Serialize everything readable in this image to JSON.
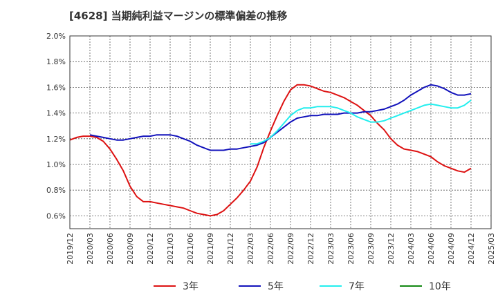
{
  "chart_data": {
    "type": "line",
    "title": "[4628]  当期純利益マージンの標準偏差の推移",
    "xlabel": "",
    "ylabel": "",
    "ylim": [
      0.5,
      2.0
    ],
    "y_ticks": [
      "0.6%",
      "0.8%",
      "1.0%",
      "1.2%",
      "1.4%",
      "1.6%",
      "1.8%",
      "2.0%"
    ],
    "y_tick_values": [
      0.6,
      0.8,
      1.0,
      1.2,
      1.4,
      1.6,
      1.8,
      2.0
    ],
    "x_ticks": [
      "2019/12",
      "2020/03",
      "2020/06",
      "2020/09",
      "2020/12",
      "2021/03",
      "2021/06",
      "2021/09",
      "2021/12",
      "2022/03",
      "2022/06",
      "2022/09",
      "2022/12",
      "2023/03",
      "2023/06",
      "2023/09",
      "2023/12",
      "2024/03",
      "2024/06",
      "2024/09",
      "2024/12",
      "2025/03"
    ],
    "grid": true,
    "legend_position": "bottom",
    "series": [
      {
        "name": "3年",
        "color": "#dd1111",
        "points": [
          [
            "2019/12",
            1.19
          ],
          [
            "2020/01",
            1.21
          ],
          [
            "2020/02",
            1.22
          ],
          [
            "2020/03",
            1.22
          ],
          [
            "2020/04",
            1.21
          ],
          [
            "2020/05",
            1.18
          ],
          [
            "2020/06",
            1.12
          ],
          [
            "2020/07",
            1.04
          ],
          [
            "2020/08",
            0.95
          ],
          [
            "2020/09",
            0.83
          ],
          [
            "2020/10",
            0.75
          ],
          [
            "2020/11",
            0.71
          ],
          [
            "2020/12",
            0.71
          ],
          [
            "2021/01",
            0.7
          ],
          [
            "2021/02",
            0.69
          ],
          [
            "2021/03",
            0.68
          ],
          [
            "2021/04",
            0.67
          ],
          [
            "2021/05",
            0.66
          ],
          [
            "2021/06",
            0.64
          ],
          [
            "2021/07",
            0.62
          ],
          [
            "2021/08",
            0.61
          ],
          [
            "2021/09",
            0.6
          ],
          [
            "2021/10",
            0.61
          ],
          [
            "2021/11",
            0.64
          ],
          [
            "2021/12",
            0.69
          ],
          [
            "2022/01",
            0.74
          ],
          [
            "2022/02",
            0.8
          ],
          [
            "2022/03",
            0.87
          ],
          [
            "2022/04",
            0.98
          ],
          [
            "2022/05",
            1.13
          ],
          [
            "2022/06",
            1.26
          ],
          [
            "2022/07",
            1.38
          ],
          [
            "2022/08",
            1.49
          ],
          [
            "2022/09",
            1.58
          ],
          [
            "2022/10",
            1.62
          ],
          [
            "2022/11",
            1.62
          ],
          [
            "2022/12",
            1.61
          ],
          [
            "2023/01",
            1.59
          ],
          [
            "2023/02",
            1.57
          ],
          [
            "2023/03",
            1.56
          ],
          [
            "2023/04",
            1.54
          ],
          [
            "2023/05",
            1.52
          ],
          [
            "2023/06",
            1.49
          ],
          [
            "2023/07",
            1.46
          ],
          [
            "2023/08",
            1.42
          ],
          [
            "2023/09",
            1.38
          ],
          [
            "2023/10",
            1.32
          ],
          [
            "2023/11",
            1.27
          ],
          [
            "2023/12",
            1.2
          ],
          [
            "2024/01",
            1.15
          ],
          [
            "2024/02",
            1.12
          ],
          [
            "2024/03",
            1.11
          ],
          [
            "2024/04",
            1.1
          ],
          [
            "2024/05",
            1.08
          ],
          [
            "2024/06",
            1.06
          ],
          [
            "2024/07",
            1.02
          ],
          [
            "2024/08",
            0.99
          ],
          [
            "2024/09",
            0.97
          ],
          [
            "2024/10",
            0.95
          ],
          [
            "2024/11",
            0.94
          ],
          [
            "2024/12",
            0.97
          ]
        ]
      },
      {
        "name": "5年",
        "color": "#1111bb",
        "points": [
          [
            "2020/03",
            1.23
          ],
          [
            "2020/04",
            1.22
          ],
          [
            "2020/05",
            1.21
          ],
          [
            "2020/06",
            1.2
          ],
          [
            "2020/07",
            1.19
          ],
          [
            "2020/08",
            1.19
          ],
          [
            "2020/09",
            1.2
          ],
          [
            "2020/10",
            1.21
          ],
          [
            "2020/11",
            1.22
          ],
          [
            "2020/12",
            1.22
          ],
          [
            "2021/01",
            1.23
          ],
          [
            "2021/02",
            1.23
          ],
          [
            "2021/03",
            1.23
          ],
          [
            "2021/04",
            1.22
          ],
          [
            "2021/05",
            1.2
          ],
          [
            "2021/06",
            1.18
          ],
          [
            "2021/07",
            1.15
          ],
          [
            "2021/08",
            1.13
          ],
          [
            "2021/09",
            1.11
          ],
          [
            "2021/10",
            1.11
          ],
          [
            "2021/11",
            1.11
          ],
          [
            "2021/12",
            1.12
          ],
          [
            "2022/01",
            1.12
          ],
          [
            "2022/02",
            1.13
          ],
          [
            "2022/03",
            1.14
          ],
          [
            "2022/04",
            1.15
          ],
          [
            "2022/05",
            1.17
          ],
          [
            "2022/06",
            1.21
          ],
          [
            "2022/07",
            1.25
          ],
          [
            "2022/08",
            1.29
          ],
          [
            "2022/09",
            1.33
          ],
          [
            "2022/10",
            1.36
          ],
          [
            "2022/11",
            1.37
          ],
          [
            "2022/12",
            1.38
          ],
          [
            "2023/01",
            1.38
          ],
          [
            "2023/02",
            1.39
          ],
          [
            "2023/03",
            1.39
          ],
          [
            "2023/04",
            1.39
          ],
          [
            "2023/05",
            1.4
          ],
          [
            "2023/06",
            1.4
          ],
          [
            "2023/07",
            1.4
          ],
          [
            "2023/08",
            1.41
          ],
          [
            "2023/09",
            1.41
          ],
          [
            "2023/10",
            1.42
          ],
          [
            "2023/11",
            1.43
          ],
          [
            "2023/12",
            1.45
          ],
          [
            "2024/01",
            1.47
          ],
          [
            "2024/02",
            1.5
          ],
          [
            "2024/03",
            1.54
          ],
          [
            "2024/04",
            1.57
          ],
          [
            "2024/05",
            1.6
          ],
          [
            "2024/06",
            1.62
          ],
          [
            "2024/07",
            1.61
          ],
          [
            "2024/08",
            1.59
          ],
          [
            "2024/09",
            1.56
          ],
          [
            "2024/10",
            1.54
          ],
          [
            "2024/11",
            1.54
          ],
          [
            "2024/12",
            1.55
          ]
        ]
      },
      {
        "name": "7年",
        "color": "#22eeee",
        "points": [
          [
            "2022/03",
            1.16
          ],
          [
            "2022/04",
            1.16
          ],
          [
            "2022/05",
            1.18
          ],
          [
            "2022/06",
            1.21
          ],
          [
            "2022/07",
            1.26
          ],
          [
            "2022/08",
            1.32
          ],
          [
            "2022/09",
            1.38
          ],
          [
            "2022/10",
            1.42
          ],
          [
            "2022/11",
            1.44
          ],
          [
            "2022/12",
            1.44
          ],
          [
            "2023/01",
            1.45
          ],
          [
            "2023/02",
            1.45
          ],
          [
            "2023/03",
            1.45
          ],
          [
            "2023/04",
            1.44
          ],
          [
            "2023/05",
            1.42
          ],
          [
            "2023/06",
            1.4
          ],
          [
            "2023/07",
            1.37
          ],
          [
            "2023/08",
            1.35
          ],
          [
            "2023/09",
            1.33
          ],
          [
            "2023/10",
            1.33
          ],
          [
            "2023/11",
            1.34
          ],
          [
            "2023/12",
            1.36
          ],
          [
            "2024/01",
            1.38
          ],
          [
            "2024/02",
            1.4
          ],
          [
            "2024/03",
            1.42
          ],
          [
            "2024/04",
            1.44
          ],
          [
            "2024/05",
            1.46
          ],
          [
            "2024/06",
            1.47
          ],
          [
            "2024/07",
            1.46
          ],
          [
            "2024/08",
            1.45
          ],
          [
            "2024/09",
            1.44
          ],
          [
            "2024/10",
            1.44
          ],
          [
            "2024/11",
            1.46
          ],
          [
            "2024/12",
            1.5
          ]
        ]
      },
      {
        "name": "10年",
        "color": "#118811",
        "points": []
      }
    ]
  }
}
